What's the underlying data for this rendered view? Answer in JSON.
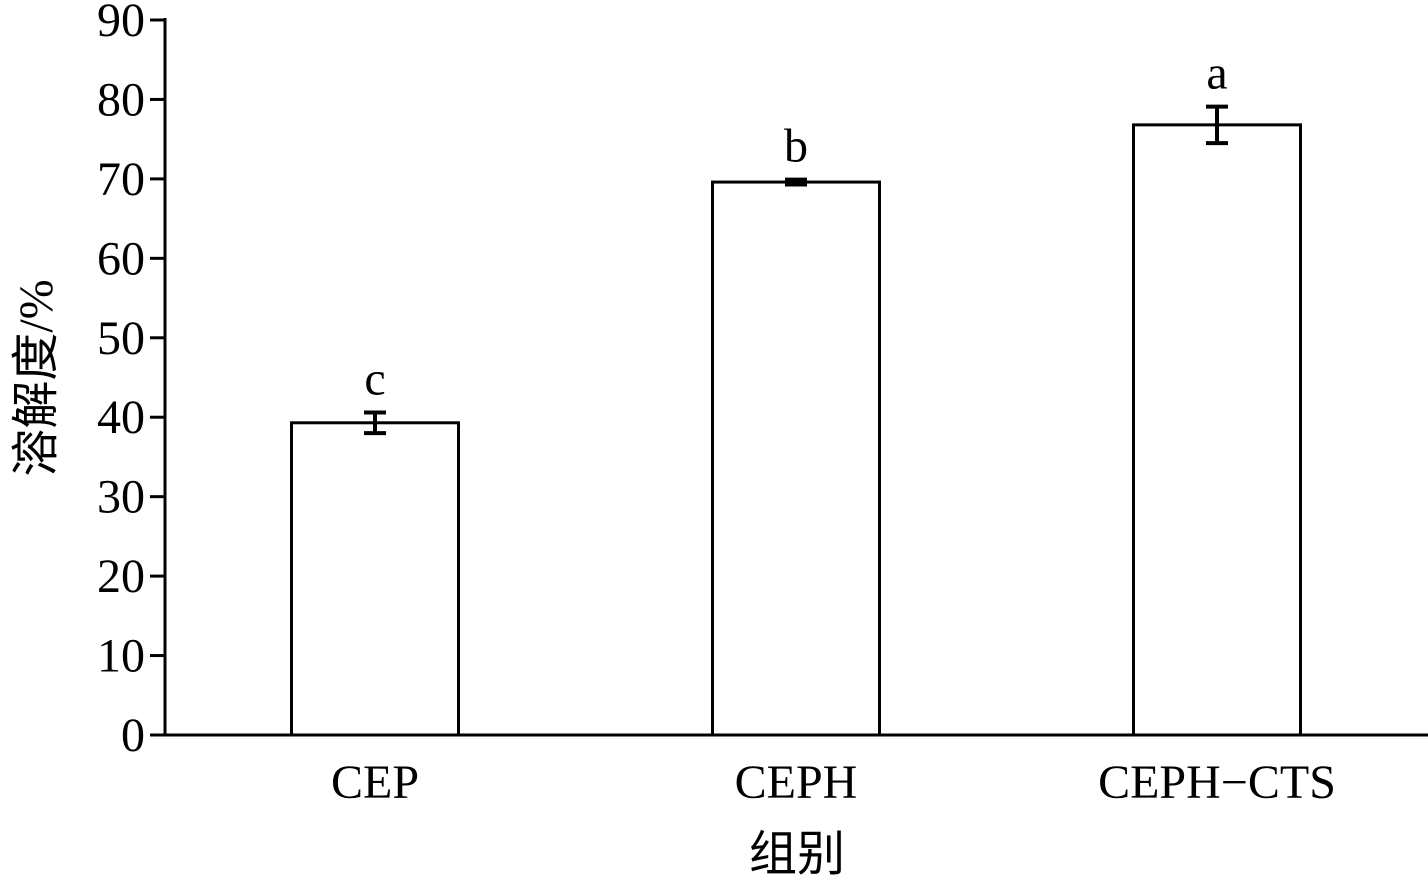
{
  "chart_data": {
    "type": "bar",
    "title": "",
    "xlabel": "组别",
    "ylabel": "溶解度/%",
    "categories": [
      "CEP",
      "CEPH",
      "CEPH−CTS"
    ],
    "values": [
      39.3,
      69.6,
      76.8
    ],
    "errors": [
      1.3,
      0.3,
      2.3
    ],
    "significance_labels": [
      "c",
      "b",
      "a"
    ],
    "ylim": [
      0,
      90
    ],
    "yticks": [
      0,
      10,
      20,
      30,
      40,
      50,
      60,
      70,
      80,
      90
    ],
    "grid": false,
    "bar_fill": "#ffffff",
    "bar_stroke": "#000000"
  }
}
